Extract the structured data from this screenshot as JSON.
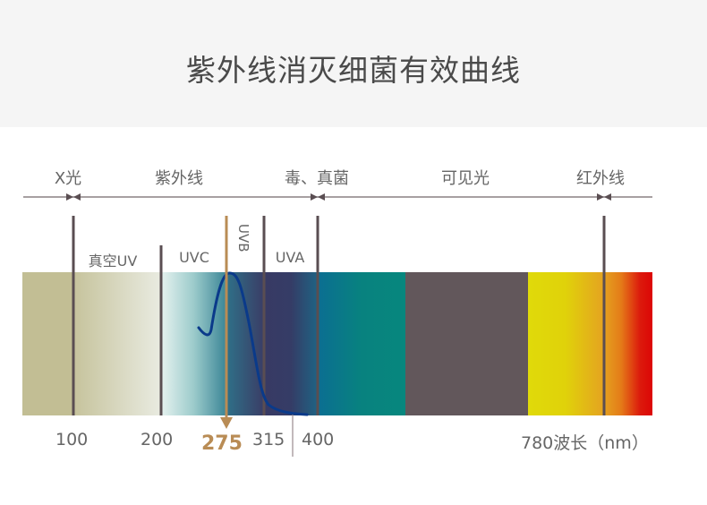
{
  "title": "紫外线消灭细菌有效曲线",
  "bands": [
    "X光",
    "紫外线",
    "毒、真菌",
    "可见光",
    "红外线"
  ],
  "sub_bands": {
    "vacuum_uv": "真空UV",
    "uvc": "UVC",
    "uvb": "UVB",
    "uva": "UVA"
  },
  "ticks": {
    "t100": "100",
    "t200": "200",
    "t275": "275",
    "t315": "315",
    "t400": "400",
    "t780": "780波长（nm）"
  },
  "colors": {
    "highlight": "#b98c55",
    "curve": "#0a3a8a",
    "divider": "#5a4e52"
  }
}
